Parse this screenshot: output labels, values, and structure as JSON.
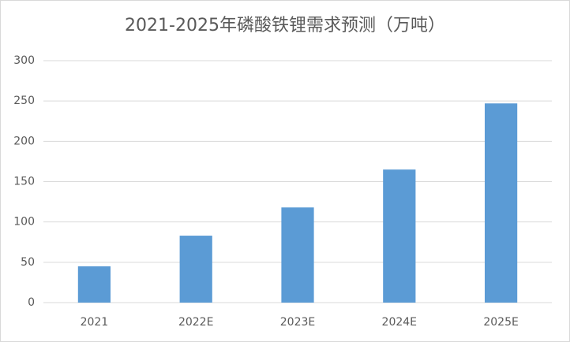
{
  "chart_data": {
    "type": "bar",
    "title": "2021-2025年磷酸铁锂需求预测（万吨）",
    "categories": [
      "2021",
      "2022E",
      "2023E",
      "2024E",
      "2025E"
    ],
    "values": [
      45,
      83,
      118,
      165,
      247
    ],
    "color": "#5b9bd5",
    "ylim": [
      0,
      300
    ],
    "yticks": [
      0,
      50,
      100,
      150,
      200,
      250,
      300
    ],
    "grid": true
  }
}
